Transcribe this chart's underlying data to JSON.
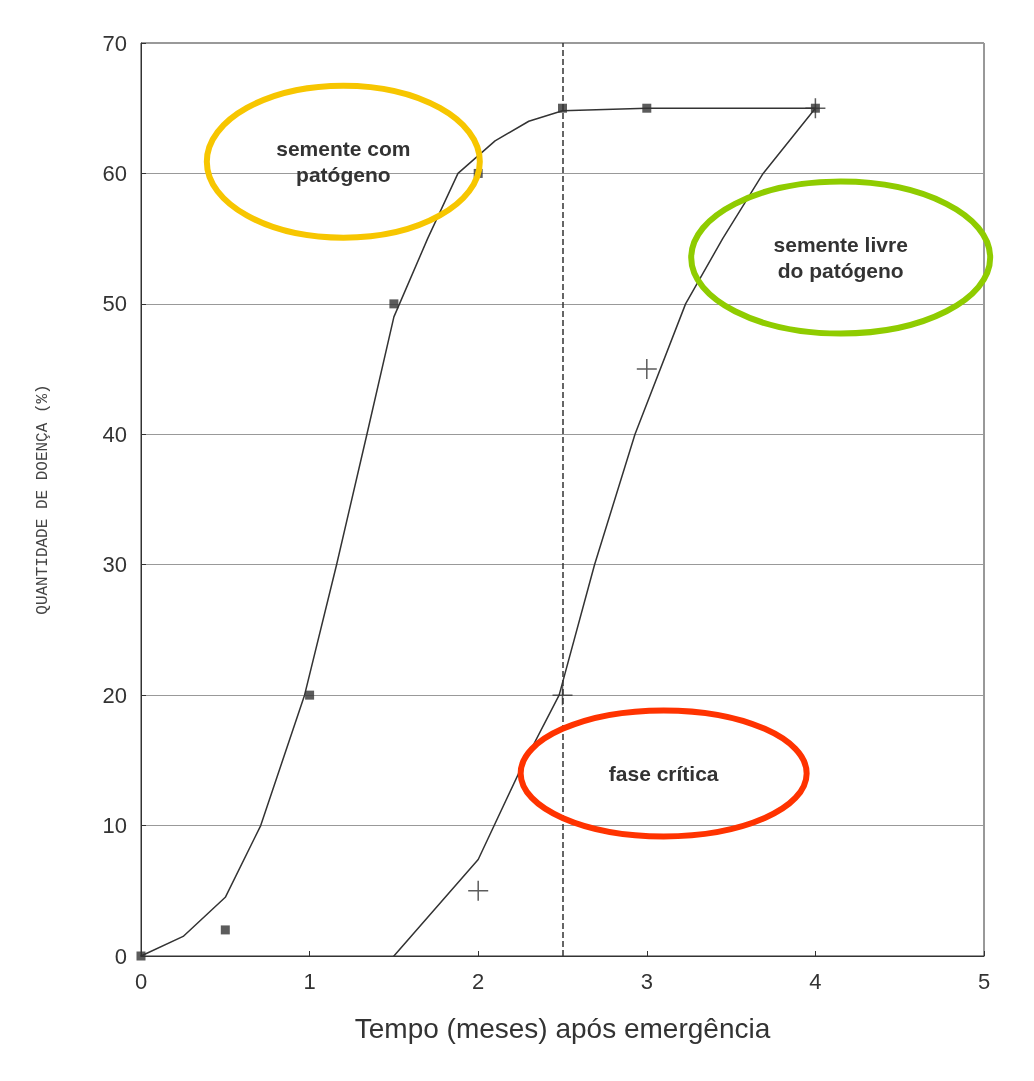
{
  "chart_data": {
    "type": "scatter",
    "xlabel": "Tempo (meses) após emergência",
    "ylabel": "QUANTIDADE DE DOENÇA (%)",
    "xlim": [
      0,
      5
    ],
    "xticks": [
      0,
      1,
      2,
      3,
      4,
      5
    ],
    "ylim": [
      0,
      70
    ],
    "yticks": [
      0,
      10,
      20,
      30,
      40,
      50,
      60,
      70
    ],
    "grid": "y",
    "series": [
      {
        "marker": "square",
        "color": "#333333",
        "x": [
          0,
          0.5,
          1,
          1.5,
          2,
          2.5,
          3,
          4
        ],
        "values": [
          0,
          2,
          20,
          50,
          60,
          65,
          65,
          65
        ]
      },
      {
        "marker": "cross",
        "color": "#333333",
        "x": [
          2,
          2.5,
          3,
          4
        ],
        "values": [
          5,
          20,
          45,
          65
        ]
      },
      {
        "type": "line",
        "marker": "none",
        "line_style": "solid",
        "color": "#333333",
        "x": [
          0,
          0.25,
          0.5,
          0.71,
          0.97,
          1.16,
          1.34,
          1.5,
          1.7,
          1.88,
          2.1,
          2.3,
          2.5,
          3,
          4
        ],
        "values": [
          0,
          1.5,
          4.5,
          10,
          20,
          30,
          40,
          49,
          55,
          60,
          62.5,
          64,
          64.8,
          65,
          65
        ]
      },
      {
        "type": "line",
        "marker": "none",
        "line_style": "solid",
        "color": "#333333",
        "x": [
          1.5,
          2,
          2.24,
          2.48,
          2.69,
          2.93,
          3.23,
          3.45,
          3.69,
          4
        ],
        "values": [
          0,
          7.4,
          14,
          20,
          30,
          40,
          50,
          55,
          60,
          65
        ]
      }
    ],
    "ref_lines": [
      {
        "axis": "x",
        "value": 2.5,
        "line_style": "dashed",
        "color": "#333333"
      }
    ],
    "annotations": [
      "semente com\npatógeno",
      "semente livre\ndo patógeno",
      "fase crítica"
    ]
  }
}
